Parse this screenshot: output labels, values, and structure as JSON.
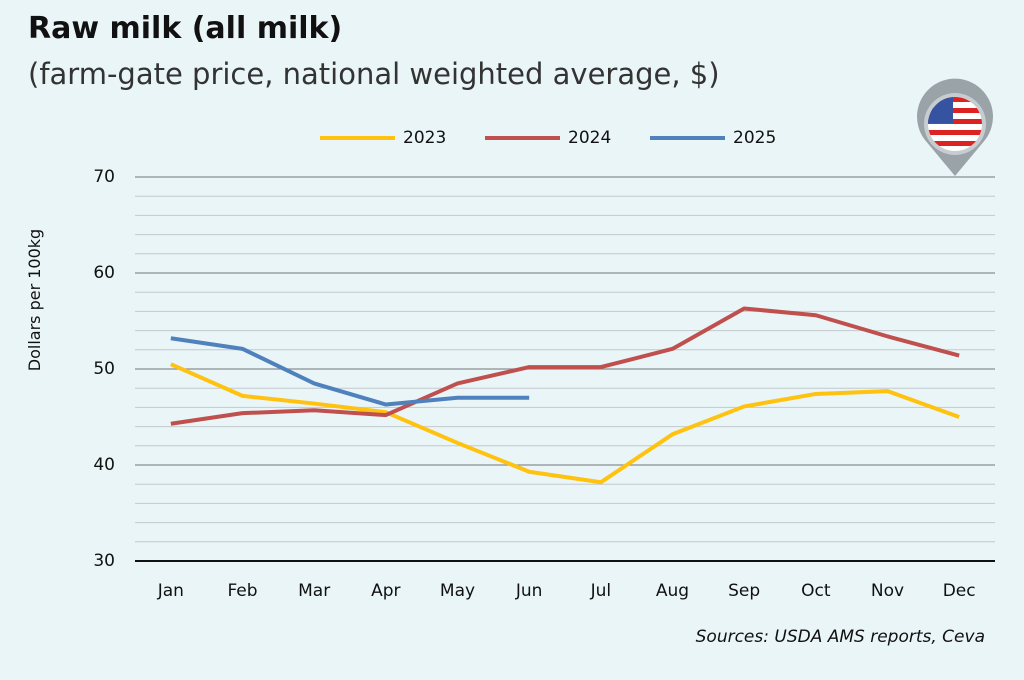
{
  "chart_data": {
    "type": "line",
    "title": "Raw milk (all milk)",
    "subtitle": "(farm-gate price, national weighted average, $)",
    "y_label": "Dollars per 100kg",
    "source": "Sources: USDA AMS reports, Ceva",
    "categories": [
      "Jan",
      "Feb",
      "Mar",
      "Apr",
      "May",
      "Jun",
      "Jul",
      "Aug",
      "Sep",
      "Oct",
      "Nov",
      "Dec"
    ],
    "series": [
      {
        "name": "2023",
        "color": "#ffc20e",
        "values": [
          50.5,
          47.2,
          46.4,
          45.5,
          42.3,
          39.3,
          38.2,
          43.2,
          46.1,
          47.4,
          47.7,
          45.0
        ]
      },
      {
        "name": "2024",
        "color": "#c0504d",
        "values": [
          44.3,
          45.4,
          45.7,
          45.2,
          48.5,
          50.2,
          50.2,
          52.1,
          56.3,
          55.6,
          53.4,
          51.4
        ]
      },
      {
        "name": "2025",
        "color": "#4f81bd",
        "values": [
          53.2,
          52.1,
          48.5,
          46.3,
          47.0,
          47.0,
          null,
          null,
          null,
          null,
          null,
          null
        ]
      }
    ],
    "ylim": [
      30,
      70
    ],
    "yticks": [
      30,
      40,
      50,
      60,
      70
    ],
    "minor_yticks": [
      32,
      34,
      36,
      38,
      42,
      44,
      46,
      48,
      52,
      54,
      56,
      58,
      62,
      64,
      66,
      68
    ],
    "grid": true,
    "legend": "top"
  }
}
